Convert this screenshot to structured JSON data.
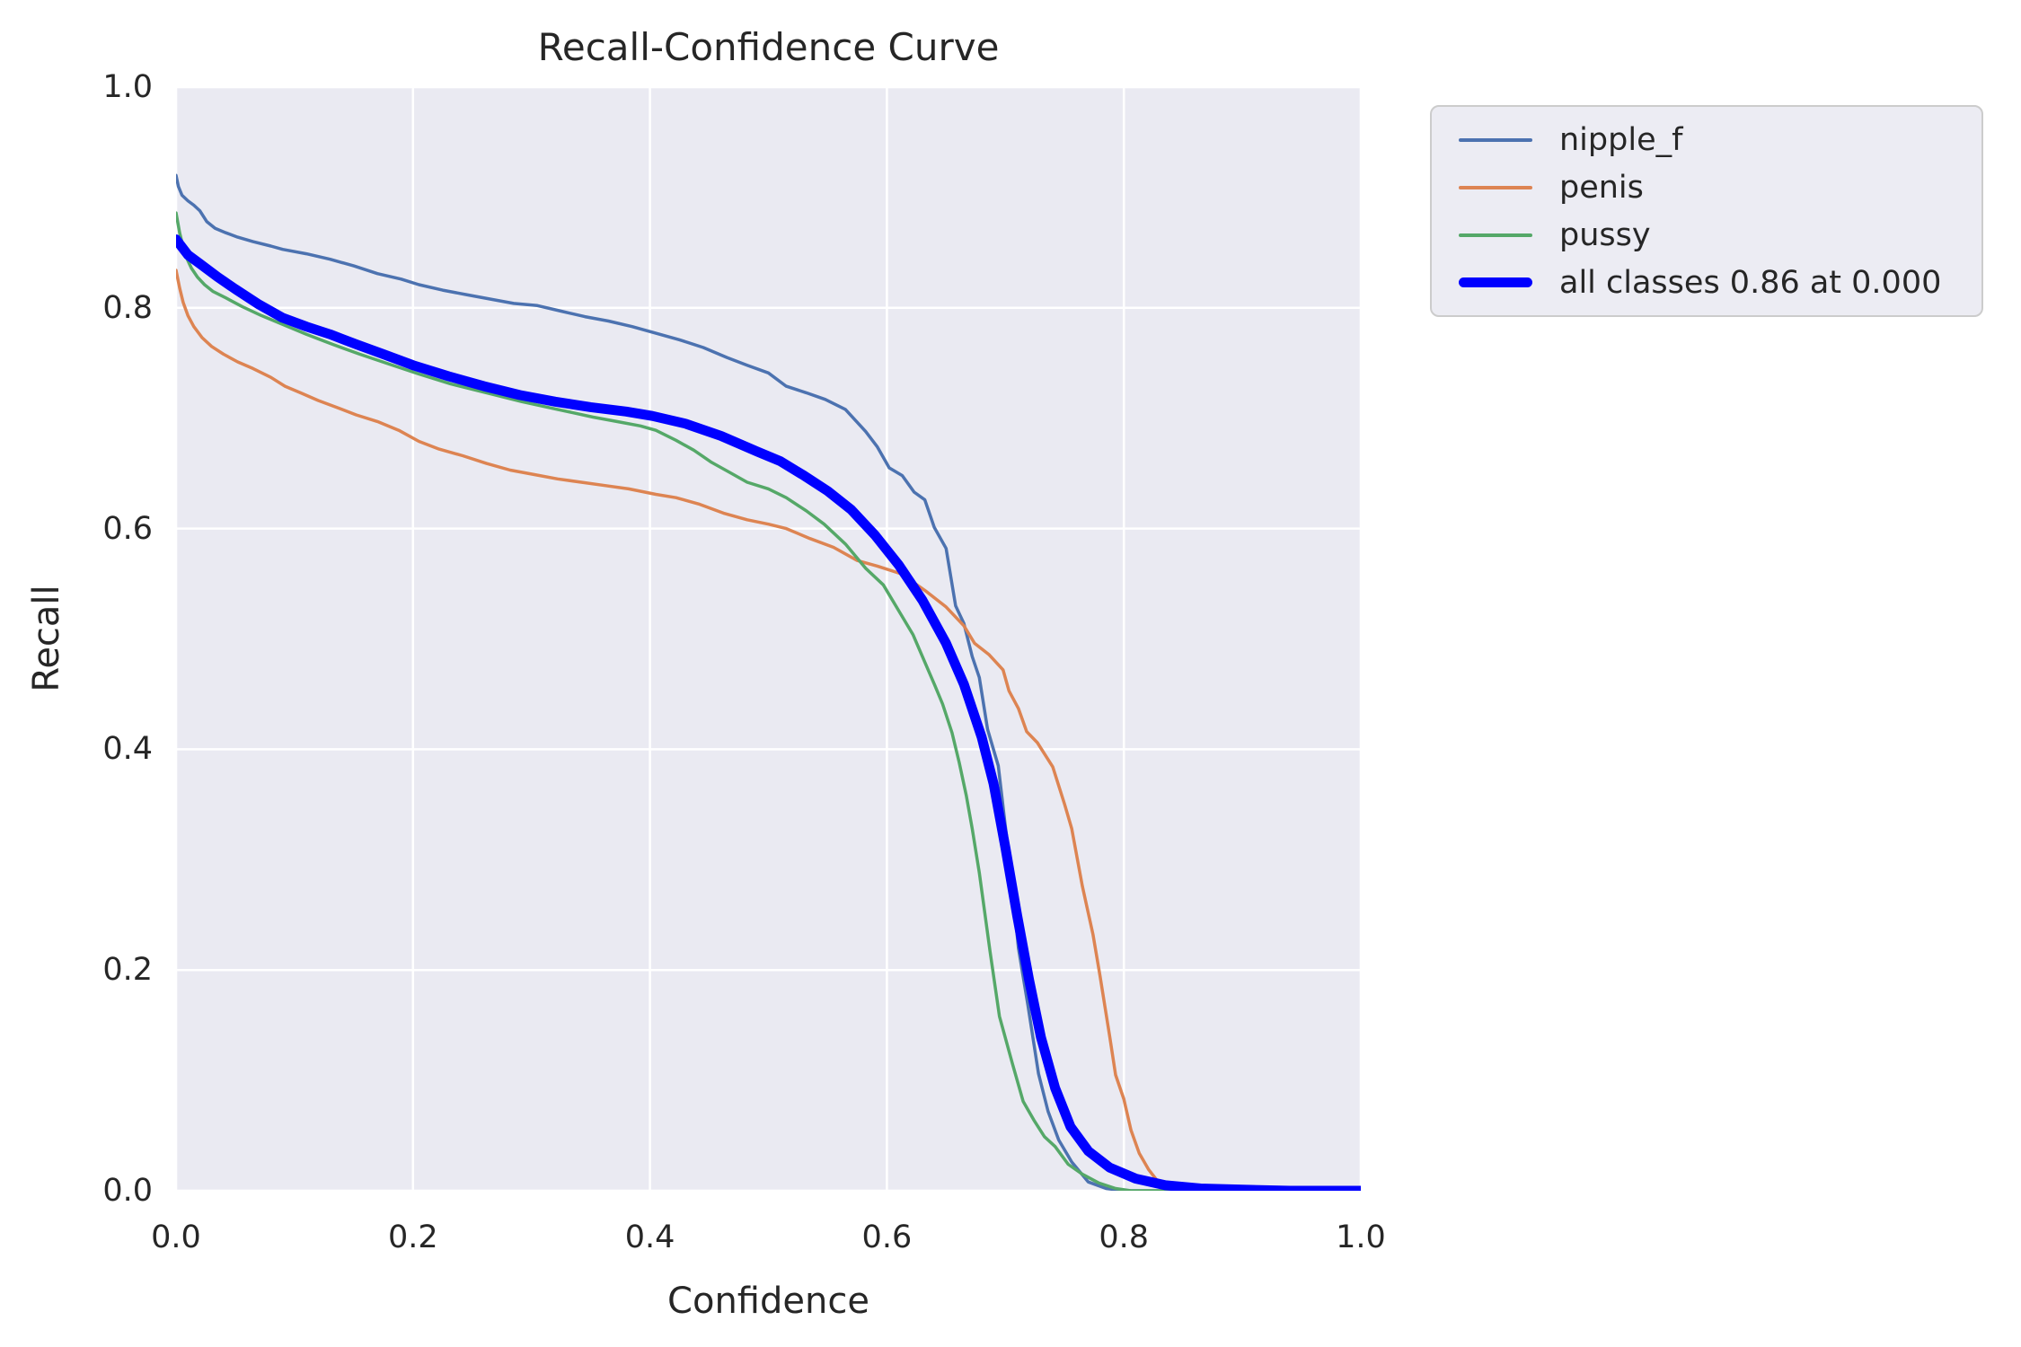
{
  "figure_title": "Recall-Confidence Curve",
  "colors": {
    "plot_background": "#eaeaf2",
    "grid": "#ffffff",
    "text": "#262626",
    "legend_background": "#ececf3",
    "legend_border": "#cccccc",
    "series_nipple_f": "#4c72b0",
    "series_penis": "#dd8452",
    "series_pussy": "#55a868",
    "series_all_classes": "#0000ff"
  },
  "chart_data": {
    "type": "line",
    "title": "Recall-Confidence Curve",
    "xlabel": "Confidence",
    "ylabel": "Recall",
    "xlim": [
      0.0,
      1.0
    ],
    "ylim": [
      0.0,
      1.0
    ],
    "grid": true,
    "legend_position": "outside upper right",
    "xticks": [
      {
        "label": "0.0",
        "value": 0.0
      },
      {
        "label": "0.2",
        "value": 0.2
      },
      {
        "label": "0.4",
        "value": 0.4
      },
      {
        "label": "0.6",
        "value": 0.6
      },
      {
        "label": "0.8",
        "value": 0.8
      },
      {
        "label": "1.0",
        "value": 1.0
      }
    ],
    "yticks": [
      {
        "label": "0.0",
        "value": 0.0
      },
      {
        "label": "0.2",
        "value": 0.2
      },
      {
        "label": "0.4",
        "value": 0.4
      },
      {
        "label": "0.6",
        "value": 0.6
      },
      {
        "label": "0.8",
        "value": 0.8
      },
      {
        "label": "1.0",
        "value": 1.0
      }
    ],
    "series": [
      {
        "name": "nipple_f",
        "color": "#4c72b0",
        "line_width": 3.5,
        "points": [
          [
            0.0,
            0.92
          ],
          [
            0.002,
            0.91
          ],
          [
            0.005,
            0.902
          ],
          [
            0.01,
            0.897
          ],
          [
            0.015,
            0.893
          ],
          [
            0.02,
            0.888
          ],
          [
            0.026,
            0.878
          ],
          [
            0.033,
            0.872
          ],
          [
            0.042,
            0.868
          ],
          [
            0.052,
            0.864
          ],
          [
            0.065,
            0.86
          ],
          [
            0.08,
            0.856
          ],
          [
            0.09,
            0.853
          ],
          [
            0.11,
            0.849
          ],
          [
            0.13,
            0.844
          ],
          [
            0.15,
            0.838
          ],
          [
            0.17,
            0.831
          ],
          [
            0.19,
            0.826
          ],
          [
            0.205,
            0.821
          ],
          [
            0.225,
            0.816
          ],
          [
            0.245,
            0.812
          ],
          [
            0.265,
            0.808
          ],
          [
            0.285,
            0.804
          ],
          [
            0.305,
            0.802
          ],
          [
            0.325,
            0.797
          ],
          [
            0.345,
            0.792
          ],
          [
            0.365,
            0.788
          ],
          [
            0.385,
            0.783
          ],
          [
            0.405,
            0.777
          ],
          [
            0.425,
            0.771
          ],
          [
            0.445,
            0.764
          ],
          [
            0.465,
            0.755
          ],
          [
            0.482,
            0.748
          ],
          [
            0.5,
            0.741
          ],
          [
            0.515,
            0.729
          ],
          [
            0.532,
            0.723
          ],
          [
            0.548,
            0.717
          ],
          [
            0.565,
            0.708
          ],
          [
            0.582,
            0.688
          ],
          [
            0.592,
            0.674
          ],
          [
            0.602,
            0.655
          ],
          [
            0.613,
            0.648
          ],
          [
            0.623,
            0.633
          ],
          [
            0.632,
            0.626
          ],
          [
            0.64,
            0.601
          ],
          [
            0.65,
            0.582
          ],
          [
            0.658,
            0.53
          ],
          [
            0.665,
            0.514
          ],
          [
            0.672,
            0.484
          ],
          [
            0.678,
            0.465
          ],
          [
            0.685,
            0.418
          ],
          [
            0.694,
            0.385
          ],
          [
            0.7,
            0.33
          ],
          [
            0.704,
            0.296
          ],
          [
            0.711,
            0.22
          ],
          [
            0.719,
            0.168
          ],
          [
            0.728,
            0.106
          ],
          [
            0.736,
            0.072
          ],
          [
            0.745,
            0.046
          ],
          [
            0.756,
            0.026
          ],
          [
            0.77,
            0.008
          ],
          [
            0.785,
            0.002
          ],
          [
            0.8,
            0.0
          ],
          [
            1.0,
            0.0
          ]
        ]
      },
      {
        "name": "penis",
        "color": "#dd8452",
        "line_width": 3.5,
        "points": [
          [
            0.0,
            0.834
          ],
          [
            0.003,
            0.818
          ],
          [
            0.006,
            0.805
          ],
          [
            0.01,
            0.793
          ],
          [
            0.015,
            0.783
          ],
          [
            0.022,
            0.773
          ],
          [
            0.03,
            0.765
          ],
          [
            0.04,
            0.758
          ],
          [
            0.052,
            0.751
          ],
          [
            0.065,
            0.745
          ],
          [
            0.08,
            0.737
          ],
          [
            0.092,
            0.729
          ],
          [
            0.105,
            0.723
          ],
          [
            0.12,
            0.716
          ],
          [
            0.135,
            0.71
          ],
          [
            0.152,
            0.703
          ],
          [
            0.17,
            0.697
          ],
          [
            0.188,
            0.689
          ],
          [
            0.205,
            0.679
          ],
          [
            0.222,
            0.672
          ],
          [
            0.242,
            0.666
          ],
          [
            0.262,
            0.659
          ],
          [
            0.282,
            0.653
          ],
          [
            0.302,
            0.649
          ],
          [
            0.322,
            0.645
          ],
          [
            0.342,
            0.642
          ],
          [
            0.362,
            0.639
          ],
          [
            0.382,
            0.636
          ],
          [
            0.405,
            0.631
          ],
          [
            0.422,
            0.628
          ],
          [
            0.442,
            0.622
          ],
          [
            0.462,
            0.614
          ],
          [
            0.482,
            0.608
          ],
          [
            0.5,
            0.604
          ],
          [
            0.515,
            0.6
          ],
          [
            0.535,
            0.591
          ],
          [
            0.555,
            0.583
          ],
          [
            0.575,
            0.571
          ],
          [
            0.592,
            0.566
          ],
          [
            0.612,
            0.559
          ],
          [
            0.632,
            0.544
          ],
          [
            0.65,
            0.529
          ],
          [
            0.665,
            0.512
          ],
          [
            0.674,
            0.496
          ],
          [
            0.686,
            0.486
          ],
          [
            0.698,
            0.472
          ],
          [
            0.703,
            0.453
          ],
          [
            0.711,
            0.437
          ],
          [
            0.718,
            0.416
          ],
          [
            0.727,
            0.406
          ],
          [
            0.74,
            0.384
          ],
          [
            0.75,
            0.35
          ],
          [
            0.756,
            0.328
          ],
          [
            0.765,
            0.276
          ],
          [
            0.774,
            0.232
          ],
          [
            0.78,
            0.194
          ],
          [
            0.788,
            0.14
          ],
          [
            0.793,
            0.105
          ],
          [
            0.8,
            0.083
          ],
          [
            0.806,
            0.055
          ],
          [
            0.813,
            0.034
          ],
          [
            0.821,
            0.019
          ],
          [
            0.829,
            0.008
          ],
          [
            0.836,
            0.002
          ],
          [
            0.846,
            0.0
          ],
          [
            1.0,
            0.0
          ]
        ]
      },
      {
        "name": "pussy",
        "color": "#55a868",
        "line_width": 3.5,
        "points": [
          [
            0.0,
            0.886
          ],
          [
            0.003,
            0.868
          ],
          [
            0.006,
            0.855
          ],
          [
            0.009,
            0.845
          ],
          [
            0.013,
            0.836
          ],
          [
            0.018,
            0.828
          ],
          [
            0.024,
            0.821
          ],
          [
            0.031,
            0.815
          ],
          [
            0.042,
            0.809
          ],
          [
            0.056,
            0.801
          ],
          [
            0.072,
            0.793
          ],
          [
            0.09,
            0.785
          ],
          [
            0.11,
            0.776
          ],
          [
            0.132,
            0.767
          ],
          [
            0.155,
            0.758
          ],
          [
            0.18,
            0.749
          ],
          [
            0.205,
            0.74
          ],
          [
            0.232,
            0.731
          ],
          [
            0.262,
            0.723
          ],
          [
            0.292,
            0.715
          ],
          [
            0.322,
            0.708
          ],
          [
            0.352,
            0.701
          ],
          [
            0.372,
            0.697
          ],
          [
            0.392,
            0.693
          ],
          [
            0.405,
            0.689
          ],
          [
            0.422,
            0.68
          ],
          [
            0.437,
            0.671
          ],
          [
            0.452,
            0.66
          ],
          [
            0.467,
            0.651
          ],
          [
            0.482,
            0.642
          ],
          [
            0.5,
            0.636
          ],
          [
            0.515,
            0.628
          ],
          [
            0.532,
            0.616
          ],
          [
            0.547,
            0.604
          ],
          [
            0.565,
            0.586
          ],
          [
            0.582,
            0.564
          ],
          [
            0.597,
            0.549
          ],
          [
            0.612,
            0.522
          ],
          [
            0.622,
            0.504
          ],
          [
            0.632,
            0.479
          ],
          [
            0.64,
            0.459
          ],
          [
            0.647,
            0.441
          ],
          [
            0.655,
            0.415
          ],
          [
            0.661,
            0.388
          ],
          [
            0.667,
            0.358
          ],
          [
            0.672,
            0.328
          ],
          [
            0.678,
            0.288
          ],
          [
            0.687,
            0.217
          ],
          [
            0.695,
            0.158
          ],
          [
            0.706,
            0.115
          ],
          [
            0.715,
            0.081
          ],
          [
            0.724,
            0.064
          ],
          [
            0.733,
            0.049
          ],
          [
            0.742,
            0.04
          ],
          [
            0.753,
            0.024
          ],
          [
            0.765,
            0.015
          ],
          [
            0.779,
            0.007
          ],
          [
            0.793,
            0.002
          ],
          [
            0.806,
            0.0
          ],
          [
            1.0,
            0.0
          ]
        ]
      },
      {
        "name": "all classes 0.86 at 0.000",
        "color": "#0000ff",
        "line_width": 11,
        "points": [
          [
            0.0,
            0.862
          ],
          [
            0.01,
            0.848
          ],
          [
            0.02,
            0.84
          ],
          [
            0.035,
            0.828
          ],
          [
            0.05,
            0.817
          ],
          [
            0.07,
            0.803
          ],
          [
            0.09,
            0.791
          ],
          [
            0.11,
            0.783
          ],
          [
            0.13,
            0.776
          ],
          [
            0.152,
            0.767
          ],
          [
            0.175,
            0.758
          ],
          [
            0.2,
            0.748
          ],
          [
            0.23,
            0.738
          ],
          [
            0.26,
            0.729
          ],
          [
            0.29,
            0.721
          ],
          [
            0.32,
            0.715
          ],
          [
            0.35,
            0.71
          ],
          [
            0.38,
            0.706
          ],
          [
            0.402,
            0.702
          ],
          [
            0.43,
            0.695
          ],
          [
            0.46,
            0.684
          ],
          [
            0.49,
            0.67
          ],
          [
            0.51,
            0.661
          ],
          [
            0.53,
            0.648
          ],
          [
            0.55,
            0.634
          ],
          [
            0.57,
            0.617
          ],
          [
            0.59,
            0.594
          ],
          [
            0.61,
            0.567
          ],
          [
            0.63,
            0.535
          ],
          [
            0.65,
            0.496
          ],
          [
            0.665,
            0.459
          ],
          [
            0.68,
            0.411
          ],
          [
            0.69,
            0.369
          ],
          [
            0.7,
            0.311
          ],
          [
            0.71,
            0.249
          ],
          [
            0.72,
            0.191
          ],
          [
            0.73,
            0.139
          ],
          [
            0.742,
            0.093
          ],
          [
            0.755,
            0.058
          ],
          [
            0.77,
            0.036
          ],
          [
            0.788,
            0.021
          ],
          [
            0.81,
            0.011
          ],
          [
            0.835,
            0.005
          ],
          [
            0.865,
            0.002
          ],
          [
            0.9,
            0.001
          ],
          [
            0.94,
            0.0
          ],
          [
            1.0,
            0.0
          ]
        ]
      }
    ],
    "annotation": {
      "best_recall": "0.86",
      "best_confidence": "0.000"
    }
  }
}
